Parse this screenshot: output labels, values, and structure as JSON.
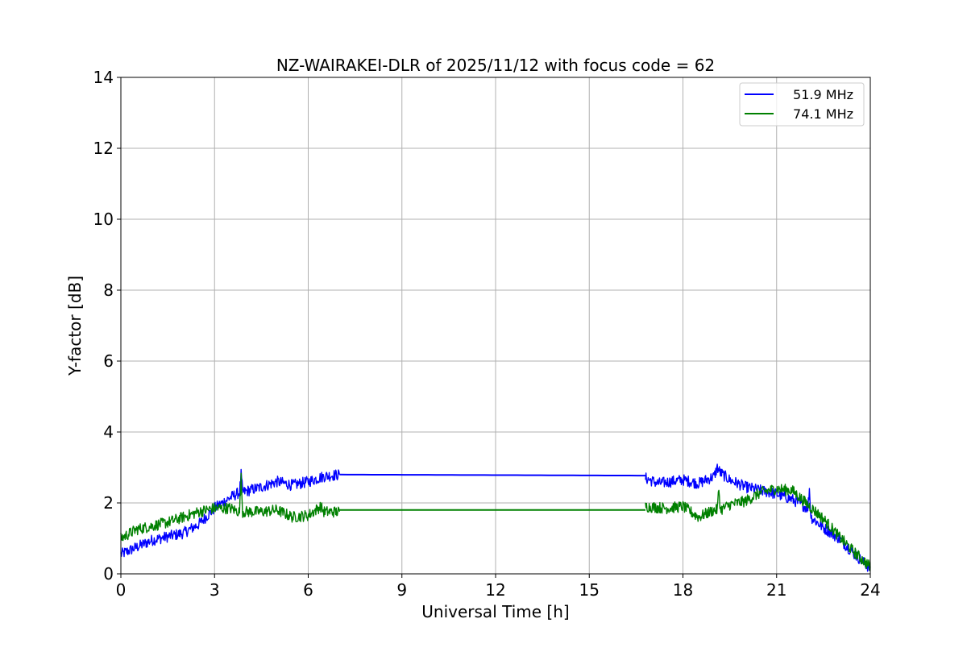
{
  "chart_data": {
    "type": "line",
    "title": "NZ-WAIRAKEI-DLR of 2025/11/12 with focus code = 62",
    "xlabel": "Universal Time [h]",
    "ylabel": "Y-factor [dB]",
    "xlim": [
      0,
      24
    ],
    "ylim": [
      0,
      14
    ],
    "xticks": [
      0,
      3,
      6,
      9,
      12,
      15,
      18,
      21,
      24
    ],
    "yticks": [
      0,
      2,
      4,
      6,
      8,
      10,
      12,
      14
    ],
    "grid": true,
    "legend_position": "top-right",
    "series": [
      {
        "name": "51.9 MHz",
        "color": "#0000ff",
        "segments": [
          {
            "x": [
              0,
              0.5,
              1,
              1.5,
              2,
              2.5,
              3,
              3.5,
              3.8,
              3.85,
              3.9,
              4.5,
              5,
              5.5,
              6,
              6.5,
              7
            ],
            "y": [
              0.55,
              0.75,
              0.95,
              1.05,
              1.15,
              1.4,
              1.85,
              2.15,
              2.3,
              2.8,
              2.3,
              2.45,
              2.6,
              2.5,
              2.6,
              2.75,
              2.8
            ]
          },
          {
            "x": [
              7,
              16.8
            ],
            "y": [
              2.8,
              2.77
            ]
          },
          {
            "x": [
              16.8,
              17.2,
              18,
              18.5,
              19,
              19.1,
              19.2,
              19.5,
              20,
              20.5,
              21,
              21.5,
              22,
              22.05,
              22.1,
              22.5,
              23,
              23.5,
              24
            ],
            "y": [
              2.7,
              2.55,
              2.65,
              2.55,
              2.75,
              3.0,
              2.85,
              2.65,
              2.45,
              2.35,
              2.25,
              2.1,
              1.85,
              2.4,
              1.6,
              1.3,
              1.0,
              0.55,
              0.15
            ]
          }
        ]
      },
      {
        "name": "74.1 MHz",
        "color": "#008000",
        "segments": [
          {
            "x": [
              0,
              0.5,
              1,
              1.5,
              2,
              2.5,
              3,
              3.5,
              3.8,
              3.85,
              3.9,
              4.5,
              5,
              5.5,
              6,
              6.4,
              6.5,
              7
            ],
            "y": [
              1.0,
              1.25,
              1.35,
              1.45,
              1.6,
              1.75,
              1.85,
              1.85,
              1.75,
              2.7,
              1.75,
              1.75,
              1.8,
              1.6,
              1.65,
              1.9,
              1.75,
              1.75
            ]
          },
          {
            "x": [
              7,
              16.8
            ],
            "y": [
              1.8,
              1.8
            ]
          },
          {
            "x": [
              16.8,
              17.5,
              18,
              18.5,
              19,
              19.1,
              19.15,
              19.2,
              19.5,
              20,
              20.5,
              21,
              21.5,
              22,
              22.5,
              23,
              23.5,
              24
            ],
            "y": [
              1.9,
              1.85,
              1.9,
              1.6,
              1.8,
              1.8,
              2.4,
              1.8,
              1.95,
              2.05,
              2.3,
              2.4,
              2.35,
              1.95,
              1.55,
              1.05,
              0.6,
              0.2
            ]
          }
        ]
      }
    ]
  }
}
